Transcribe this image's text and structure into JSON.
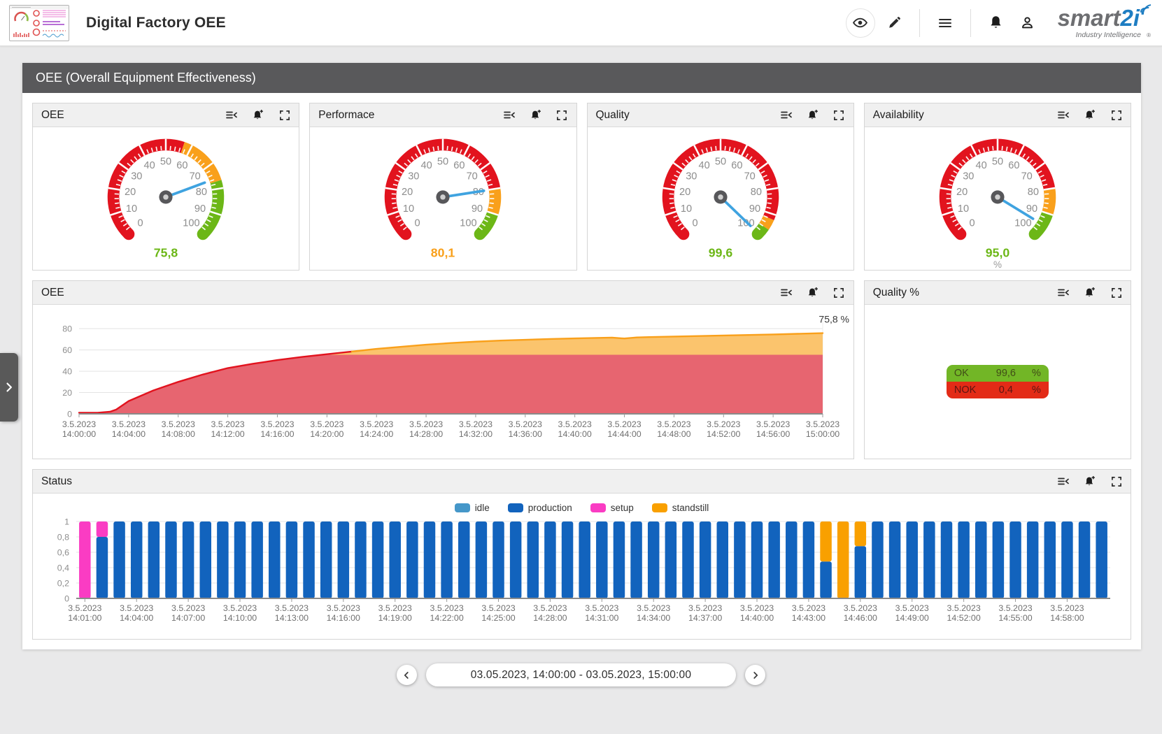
{
  "header": {
    "title": "Digital Factory OEE",
    "brand": {
      "name_gray": "smart",
      "name_blue": "2i",
      "tagline": "Industry Intelligence",
      "registered": "®"
    }
  },
  "banner": {
    "title": "OEE (Overall Equipment Effectiveness)"
  },
  "panel_action_icons": [
    "legend-toggle",
    "add-alarm",
    "fullscreen"
  ],
  "quality_table": {
    "panel_title": "Quality %",
    "rows": [
      {
        "label": "OK",
        "value": "99,6",
        "unit": "%",
        "color": "#72b626",
        "text_color": "#414d17"
      },
      {
        "label": "NOK",
        "value": "0,4",
        "unit": "%",
        "color": "#e32b17",
        "text_color": "#5a1512"
      }
    ]
  },
  "pagination": {
    "range": "03.05.2023, 14:00:00 - 03.05.2023, 15:00:00"
  },
  "colors": {
    "red": "#e2131e",
    "orange": "#f9a01b",
    "green": "#6cb717",
    "needle": "#3fa3e0",
    "area_red_fill": "#e76570",
    "area_orange_fill": "#fbc46d",
    "production": "#1263bd",
    "idle": "#4597c9",
    "setup": "#fa3cc3",
    "standstill": "#f9a000"
  },
  "chart_data": [
    {
      "type": "gauge",
      "title": "OEE",
      "value": 75.8,
      "value_label": "75,8",
      "unit": "",
      "value_color": "#6cb717",
      "min": 0,
      "max": 100,
      "bands": [
        {
          "from": 0,
          "to": 57,
          "color": "#e2131e"
        },
        {
          "from": 57,
          "to": 77,
          "color": "#f9a01b"
        },
        {
          "from": 77,
          "to": 100,
          "color": "#6cb717"
        }
      ]
    },
    {
      "type": "gauge",
      "title": "Performace",
      "value": 80.1,
      "value_label": "80,1",
      "unit": "",
      "value_color": "#f9a01b",
      "min": 0,
      "max": 100,
      "bands": [
        {
          "from": 0,
          "to": 80,
          "color": "#e2131e"
        },
        {
          "from": 80,
          "to": 90,
          "color": "#f9a01b"
        },
        {
          "from": 90,
          "to": 100,
          "color": "#6cb717"
        }
      ]
    },
    {
      "type": "gauge",
      "title": "Quality",
      "value": 99.6,
      "value_label": "99,6",
      "unit": "",
      "value_color": "#6cb717",
      "min": 0,
      "max": 100,
      "bands": [
        {
          "from": 0,
          "to": 92,
          "color": "#e2131e"
        },
        {
          "from": 92,
          "to": 96,
          "color": "#f9a01b"
        },
        {
          "from": 96,
          "to": 100,
          "color": "#6cb717"
        }
      ]
    },
    {
      "type": "gauge",
      "title": "Availability",
      "value": 95.0,
      "value_label": "95,0",
      "unit": "%",
      "value_color": "#6cb717",
      "min": 0,
      "max": 100,
      "bands": [
        {
          "from": 0,
          "to": 80,
          "color": "#e2131e"
        },
        {
          "from": 80,
          "to": 90,
          "color": "#f9a01b"
        },
        {
          "from": 90,
          "to": 100,
          "color": "#6cb717"
        }
      ]
    },
    {
      "type": "area",
      "title": "OEE",
      "ylim": [
        0,
        88
      ],
      "yticks": [
        0,
        20,
        40,
        60,
        80
      ],
      "x_minutes_range": [
        0,
        60
      ],
      "x_date": "3.5.2023",
      "x_tick_times": [
        "14:00:00",
        "14:04:00",
        "14:08:00",
        "14:12:00",
        "14:16:00",
        "14:20:00",
        "14:24:00",
        "14:28:00",
        "14:32:00",
        "14:36:00",
        "14:40:00",
        "14:44:00",
        "14:48:00",
        "14:52:00",
        "14:56:00",
        "15:00:00"
      ],
      "annotation": "75,8 %",
      "thresholds": {
        "red_max": 55.5,
        "green_min": 75.0
      },
      "points": [
        [
          0,
          1
        ],
        [
          1.5,
          1
        ],
        [
          2.5,
          2
        ],
        [
          3,
          4
        ],
        [
          4,
          12
        ],
        [
          5,
          17
        ],
        [
          6,
          22
        ],
        [
          7,
          26
        ],
        [
          8,
          30
        ],
        [
          10,
          37
        ],
        [
          12,
          43
        ],
        [
          14,
          47
        ],
        [
          16,
          50.5
        ],
        [
          18,
          53.5
        ],
        [
          20,
          56
        ],
        [
          22,
          58.5
        ],
        [
          24,
          61
        ],
        [
          26,
          63
        ],
        [
          28,
          65
        ],
        [
          30,
          66.5
        ],
        [
          32,
          67.8
        ],
        [
          34,
          68.8
        ],
        [
          36,
          69.6
        ],
        [
          38,
          70.3
        ],
        [
          40,
          70.9
        ],
        [
          42,
          71.4
        ],
        [
          43,
          71.6
        ],
        [
          44,
          70.8
        ],
        [
          45,
          71.8
        ],
        [
          46,
          72.1
        ],
        [
          48,
          72.6
        ],
        [
          50,
          73.1
        ],
        [
          52,
          73.6
        ],
        [
          54,
          74.1
        ],
        [
          56,
          74.6
        ],
        [
          58,
          75.2
        ],
        [
          60,
          75.8
        ]
      ]
    },
    {
      "type": "stacked_bar",
      "title": "Status",
      "legend": [
        {
          "label": "idle",
          "color": "#4597c9"
        },
        {
          "label": "production",
          "color": "#1263bd"
        },
        {
          "label": "setup",
          "color": "#fa3cc3"
        },
        {
          "label": "standstill",
          "color": "#f9a000"
        }
      ],
      "ylim": [
        0,
        1
      ],
      "ytick_labels": [
        "0",
        "0,2",
        "0,4",
        "0,6",
        "0,8",
        "1"
      ],
      "x_date": "3.5.2023",
      "x_label_every": 3,
      "bars": [
        [
          "14:01:00",
          [
            [
              "setup",
              1
            ]
          ]
        ],
        [
          "14:02:00",
          [
            [
              "production",
              0.8
            ],
            [
              "setup",
              0.2
            ]
          ]
        ],
        [
          "14:03:00",
          [
            [
              "production",
              1
            ]
          ]
        ],
        [
          "14:04:00",
          [
            [
              "production",
              1
            ]
          ]
        ],
        [
          "14:05:00",
          [
            [
              "production",
              1
            ]
          ]
        ],
        [
          "14:06:00",
          [
            [
              "production",
              1
            ]
          ]
        ],
        [
          "14:07:00",
          [
            [
              "production",
              1
            ]
          ]
        ],
        [
          "14:08:00",
          [
            [
              "production",
              1
            ]
          ]
        ],
        [
          "14:09:00",
          [
            [
              "production",
              1
            ]
          ]
        ],
        [
          "14:10:00",
          [
            [
              "production",
              1
            ]
          ]
        ],
        [
          "14:11:00",
          [
            [
              "production",
              1
            ]
          ]
        ],
        [
          "14:12:00",
          [
            [
              "production",
              1
            ]
          ]
        ],
        [
          "14:13:00",
          [
            [
              "production",
              1
            ]
          ]
        ],
        [
          "14:14:00",
          [
            [
              "production",
              1
            ]
          ]
        ],
        [
          "14:15:00",
          [
            [
              "production",
              1
            ]
          ]
        ],
        [
          "14:16:00",
          [
            [
              "production",
              1
            ]
          ]
        ],
        [
          "14:17:00",
          [
            [
              "production",
              1
            ]
          ]
        ],
        [
          "14:18:00",
          [
            [
              "production",
              1
            ]
          ]
        ],
        [
          "14:19:00",
          [
            [
              "production",
              1
            ]
          ]
        ],
        [
          "14:20:00",
          [
            [
              "production",
              1
            ]
          ]
        ],
        [
          "14:21:00",
          [
            [
              "production",
              1
            ]
          ]
        ],
        [
          "14:22:00",
          [
            [
              "production",
              1
            ]
          ]
        ],
        [
          "14:23:00",
          [
            [
              "production",
              1
            ]
          ]
        ],
        [
          "14:24:00",
          [
            [
              "production",
              1
            ]
          ]
        ],
        [
          "14:25:00",
          [
            [
              "production",
              1
            ]
          ]
        ],
        [
          "14:26:00",
          [
            [
              "production",
              1
            ]
          ]
        ],
        [
          "14:27:00",
          [
            [
              "production",
              1
            ]
          ]
        ],
        [
          "14:28:00",
          [
            [
              "production",
              1
            ]
          ]
        ],
        [
          "14:29:00",
          [
            [
              "production",
              1
            ]
          ]
        ],
        [
          "14:30:00",
          [
            [
              "production",
              1
            ]
          ]
        ],
        [
          "14:31:00",
          [
            [
              "production",
              1
            ]
          ]
        ],
        [
          "14:32:00",
          [
            [
              "production",
              1
            ]
          ]
        ],
        [
          "14:33:00",
          [
            [
              "production",
              1
            ]
          ]
        ],
        [
          "14:34:00",
          [
            [
              "production",
              1
            ]
          ]
        ],
        [
          "14:35:00",
          [
            [
              "production",
              1
            ]
          ]
        ],
        [
          "14:36:00",
          [
            [
              "production",
              1
            ]
          ]
        ],
        [
          "14:37:00",
          [
            [
              "production",
              1
            ]
          ]
        ],
        [
          "14:38:00",
          [
            [
              "production",
              1
            ]
          ]
        ],
        [
          "14:39:00",
          [
            [
              "production",
              1
            ]
          ]
        ],
        [
          "14:40:00",
          [
            [
              "production",
              1
            ]
          ]
        ],
        [
          "14:41:00",
          [
            [
              "production",
              1
            ]
          ]
        ],
        [
          "14:42:00",
          [
            [
              "production",
              1
            ]
          ]
        ],
        [
          "14:43:00",
          [
            [
              "production",
              1
            ]
          ]
        ],
        [
          "14:44:00",
          [
            [
              "production",
              0.48
            ],
            [
              "standstill",
              0.52
            ]
          ]
        ],
        [
          "14:45:00",
          [
            [
              "standstill",
              1
            ]
          ]
        ],
        [
          "14:46:00",
          [
            [
              "production",
              0.68
            ],
            [
              "standstill",
              0.32
            ]
          ]
        ],
        [
          "14:47:00",
          [
            [
              "production",
              1
            ]
          ]
        ],
        [
          "14:48:00",
          [
            [
              "production",
              1
            ]
          ]
        ],
        [
          "14:49:00",
          [
            [
              "production",
              1
            ]
          ]
        ],
        [
          "14:50:00",
          [
            [
              "production",
              1
            ]
          ]
        ],
        [
          "14:51:00",
          [
            [
              "production",
              1
            ]
          ]
        ],
        [
          "14:52:00",
          [
            [
              "production",
              1
            ]
          ]
        ],
        [
          "14:53:00",
          [
            [
              "production",
              1
            ]
          ]
        ],
        [
          "14:54:00",
          [
            [
              "production",
              1
            ]
          ]
        ],
        [
          "14:55:00",
          [
            [
              "production",
              1
            ]
          ]
        ],
        [
          "14:56:00",
          [
            [
              "production",
              1
            ]
          ]
        ],
        [
          "14:57:00",
          [
            [
              "production",
              1
            ]
          ]
        ],
        [
          "14:58:00",
          [
            [
              "production",
              1
            ]
          ]
        ],
        [
          "14:59:00",
          [
            [
              "production",
              1
            ]
          ]
        ],
        [
          "15:00:00",
          [
            [
              "production",
              1
            ]
          ]
        ]
      ]
    }
  ]
}
